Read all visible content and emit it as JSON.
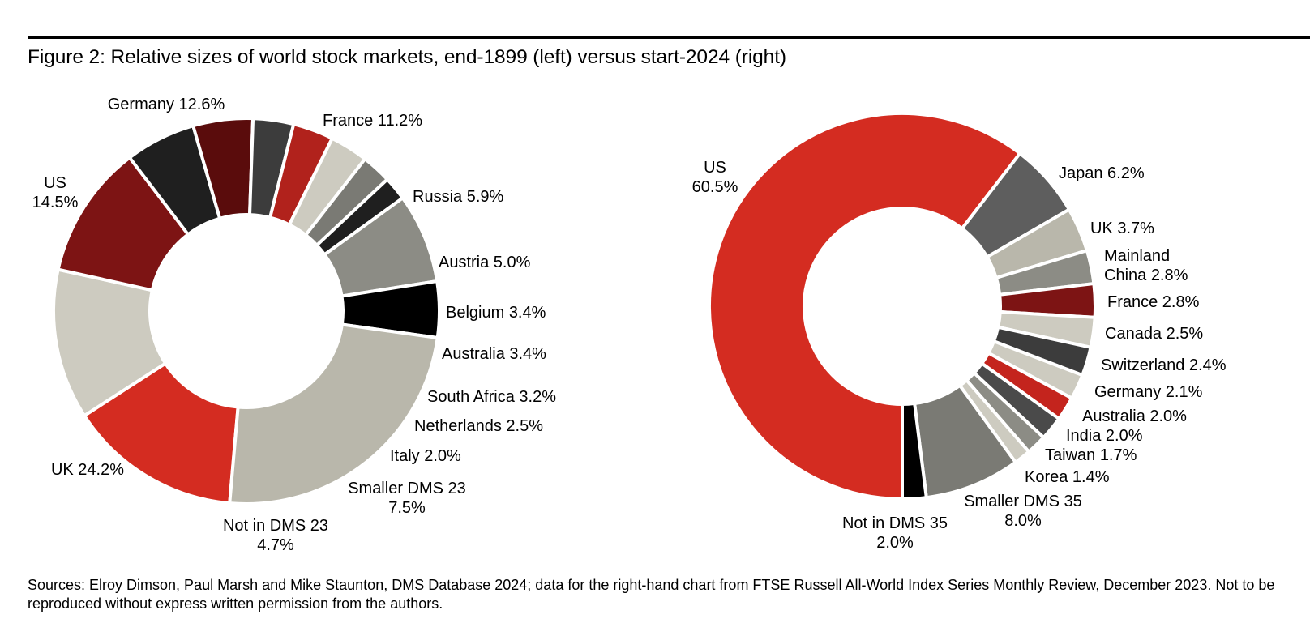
{
  "title": "Figure 2: Relative sizes of world stock markets, end-1899 (left) versus start-2024 (right)",
  "footer": "Sources: Elroy Dimson, Paul Marsh and Mike Staunton, DMS Database 2024; data for the right-hand chart from FTSE Russell All-World Index Series Monthly Review, December 2023. Not to be reproduced without express written permission from the authors.",
  "chart_data": [
    {
      "type": "pie",
      "subtype": "donut",
      "panel": "left",
      "slices": [
        {
          "label": "US",
          "value": 14.5,
          "text": [
            "US",
            "14.5%"
          ],
          "color": "#d42c21"
        },
        {
          "label": "Germany",
          "value": 12.6,
          "text": [
            "Germany 12.6%"
          ],
          "color": "#cdcbc0"
        },
        {
          "label": "France",
          "value": 11.2,
          "text": [
            "France 11.2%"
          ],
          "color": "#7d1414"
        },
        {
          "label": "Russia",
          "value": 5.9,
          "text": [
            "Russia 5.9%"
          ],
          "color": "#1f1f1f"
        },
        {
          "label": "Austria",
          "value": 5.0,
          "text": [
            "Austria 5.0%"
          ],
          "color": "#5a0c0c"
        },
        {
          "label": "Belgium",
          "value": 3.4,
          "text": [
            "Belgium 3.4%"
          ],
          "color": "#3c3c3c"
        },
        {
          "label": "Australia",
          "value": 3.4,
          "text": [
            "Australia 3.4%"
          ],
          "color": "#b1221c"
        },
        {
          "label": "South Africa",
          "value": 3.2,
          "text": [
            "South Africa 3.2%"
          ],
          "color": "#cdcbc0"
        },
        {
          "label": "Netherlands",
          "value": 2.5,
          "text": [
            "Netherlands 2.5%"
          ],
          "color": "#7a7a74"
        },
        {
          "label": "Italy",
          "value": 2.0,
          "text": [
            "Italy 2.0%"
          ],
          "color": "#1f1f1f"
        },
        {
          "label": "Smaller DMS 23",
          "value": 7.5,
          "text": [
            "Smaller DMS 23",
            "7.5%"
          ],
          "color": "#8c8c85"
        },
        {
          "label": "Not in DMS 23",
          "value": 4.7,
          "text": [
            "Not in DMS 23",
            "4.7%"
          ],
          "color": "#000000"
        },
        {
          "label": "UK",
          "value": 24.2,
          "text": [
            "UK 24.2%"
          ],
          "color": "#b9b7ab"
        }
      ]
    },
    {
      "type": "pie",
      "subtype": "donut",
      "panel": "right",
      "slices": [
        {
          "label": "US",
          "value": 60.5,
          "text": [
            "US",
            "60.5%"
          ],
          "color": "#d42c21"
        },
        {
          "label": "Japan",
          "value": 6.2,
          "text": [
            "Japan 6.2%"
          ],
          "color": "#5e5e5e"
        },
        {
          "label": "UK",
          "value": 3.7,
          "text": [
            "UK 3.7%"
          ],
          "color": "#b9b7ab"
        },
        {
          "label": "Mainland China",
          "value": 2.8,
          "text": [
            "Mainland",
            "China 2.8%"
          ],
          "color": "#8c8c85"
        },
        {
          "label": "France",
          "value": 2.8,
          "text": [
            "France 2.8%"
          ],
          "color": "#7d1414"
        },
        {
          "label": "Canada",
          "value": 2.5,
          "text": [
            "Canada 2.5%"
          ],
          "color": "#cdcbc0"
        },
        {
          "label": "Switzerland",
          "value": 2.4,
          "text": [
            "Switzerland 2.4%"
          ],
          "color": "#3c3c3c"
        },
        {
          "label": "Germany",
          "value": 2.1,
          "text": [
            "Germany 2.1%"
          ],
          "color": "#cdcbc0"
        },
        {
          "label": "Australia",
          "value": 2.0,
          "text": [
            "Australia 2.0%"
          ],
          "color": "#c4241d"
        },
        {
          "label": "India",
          "value": 2.0,
          "text": [
            "India 2.0%"
          ],
          "color": "#4a4a4a"
        },
        {
          "label": "Taiwan",
          "value": 1.7,
          "text": [
            "Taiwan 1.7%"
          ],
          "color": "#8c8c85"
        },
        {
          "label": "Korea",
          "value": 1.4,
          "text": [
            "Korea 1.4%"
          ],
          "color": "#cdcbc0"
        },
        {
          "label": "Smaller DMS 35",
          "value": 8.0,
          "text": [
            "Smaller DMS 35",
            "8.0%"
          ],
          "color": "#7a7a74"
        },
        {
          "label": "Not in DMS 35",
          "value": 2.0,
          "text": [
            "Not in DMS 35",
            "2.0%"
          ],
          "color": "#000000"
        }
      ]
    }
  ]
}
